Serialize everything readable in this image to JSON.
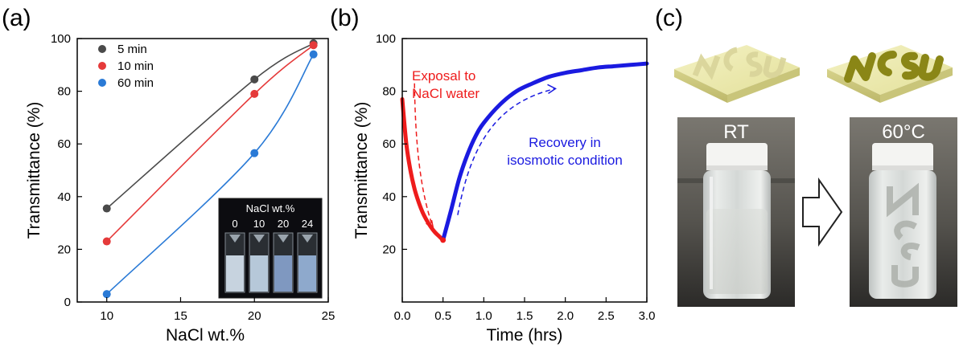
{
  "panels": {
    "a": "(a)",
    "b": "(b)",
    "c": "(c)"
  },
  "colors": {
    "gray": "#4a4a4a",
    "red": "#e53a3a",
    "blue": "#2a7ad6",
    "blue_dark": "#1a1ae0",
    "red_text": "#ee1c1c"
  },
  "chart_data": [
    {
      "type": "line",
      "xlabel": "NaCl wt.%",
      "ylabel": "Transmittance (%)",
      "xlim": [
        8,
        25
      ],
      "ylim": [
        0,
        100
      ],
      "xticks": [
        10,
        15,
        20,
        25
      ],
      "yticks": [
        0,
        20,
        40,
        60,
        80,
        100
      ],
      "x": [
        10,
        20,
        24
      ],
      "legend_position": "top-left",
      "series": [
        {
          "name": "5 min",
          "color": "#4a4a4a",
          "values": [
            35.5,
            84.5,
            98.2
          ]
        },
        {
          "name": "10 min",
          "color": "#e53a3a",
          "values": [
            23,
            79,
            97.5
          ]
        },
        {
          "name": "60 min",
          "color": "#2a7ad6",
          "values": [
            3,
            56.5,
            94
          ]
        }
      ],
      "inset": {
        "title": "NaCl wt.%",
        "labels": [
          "0",
          "10",
          "20",
          "24"
        ]
      }
    },
    {
      "type": "line",
      "xlabel": "Time (hrs)",
      "ylabel": "Transmittance (%)",
      "xlim": [
        0,
        3
      ],
      "ylim": [
        0,
        100
      ],
      "xticks": [
        "0.0",
        "0.5",
        "1.0",
        "1.5",
        "2.0",
        "2.5",
        "3.0"
      ],
      "yticks": [
        20,
        40,
        60,
        80,
        100
      ],
      "series": [
        {
          "color": "#ee1c1c",
          "x": [
            0,
            0.05,
            0.1,
            0.15,
            0.2,
            0.25,
            0.3,
            0.35,
            0.4,
            0.45,
            0.5
          ],
          "values": [
            77,
            60,
            50,
            43,
            38,
            34,
            31,
            28.5,
            26.5,
            25,
            23.5
          ]
        },
        {
          "color": "#1a1ae0",
          "x": [
            0.5,
            0.6,
            0.7,
            0.8,
            0.9,
            1.0,
            1.2,
            1.4,
            1.6,
            1.8,
            2.0,
            2.2,
            2.4,
            2.6,
            2.8,
            3.0
          ],
          "values": [
            23.5,
            35,
            47,
            56,
            63,
            68,
            75,
            80,
            83,
            85.5,
            87,
            88,
            89,
            89.5,
            90,
            90.5
          ]
        }
      ],
      "annotations": [
        {
          "lines": [
            "Exposal to",
            "NaCl water"
          ],
          "color": "#ee1c1c"
        },
        {
          "lines": [
            "Recovery in",
            "isosmotic condition"
          ],
          "color": "#1a1ae0"
        }
      ]
    }
  ],
  "photos": {
    "rt_label": "RT",
    "hot_label": "60°C"
  }
}
